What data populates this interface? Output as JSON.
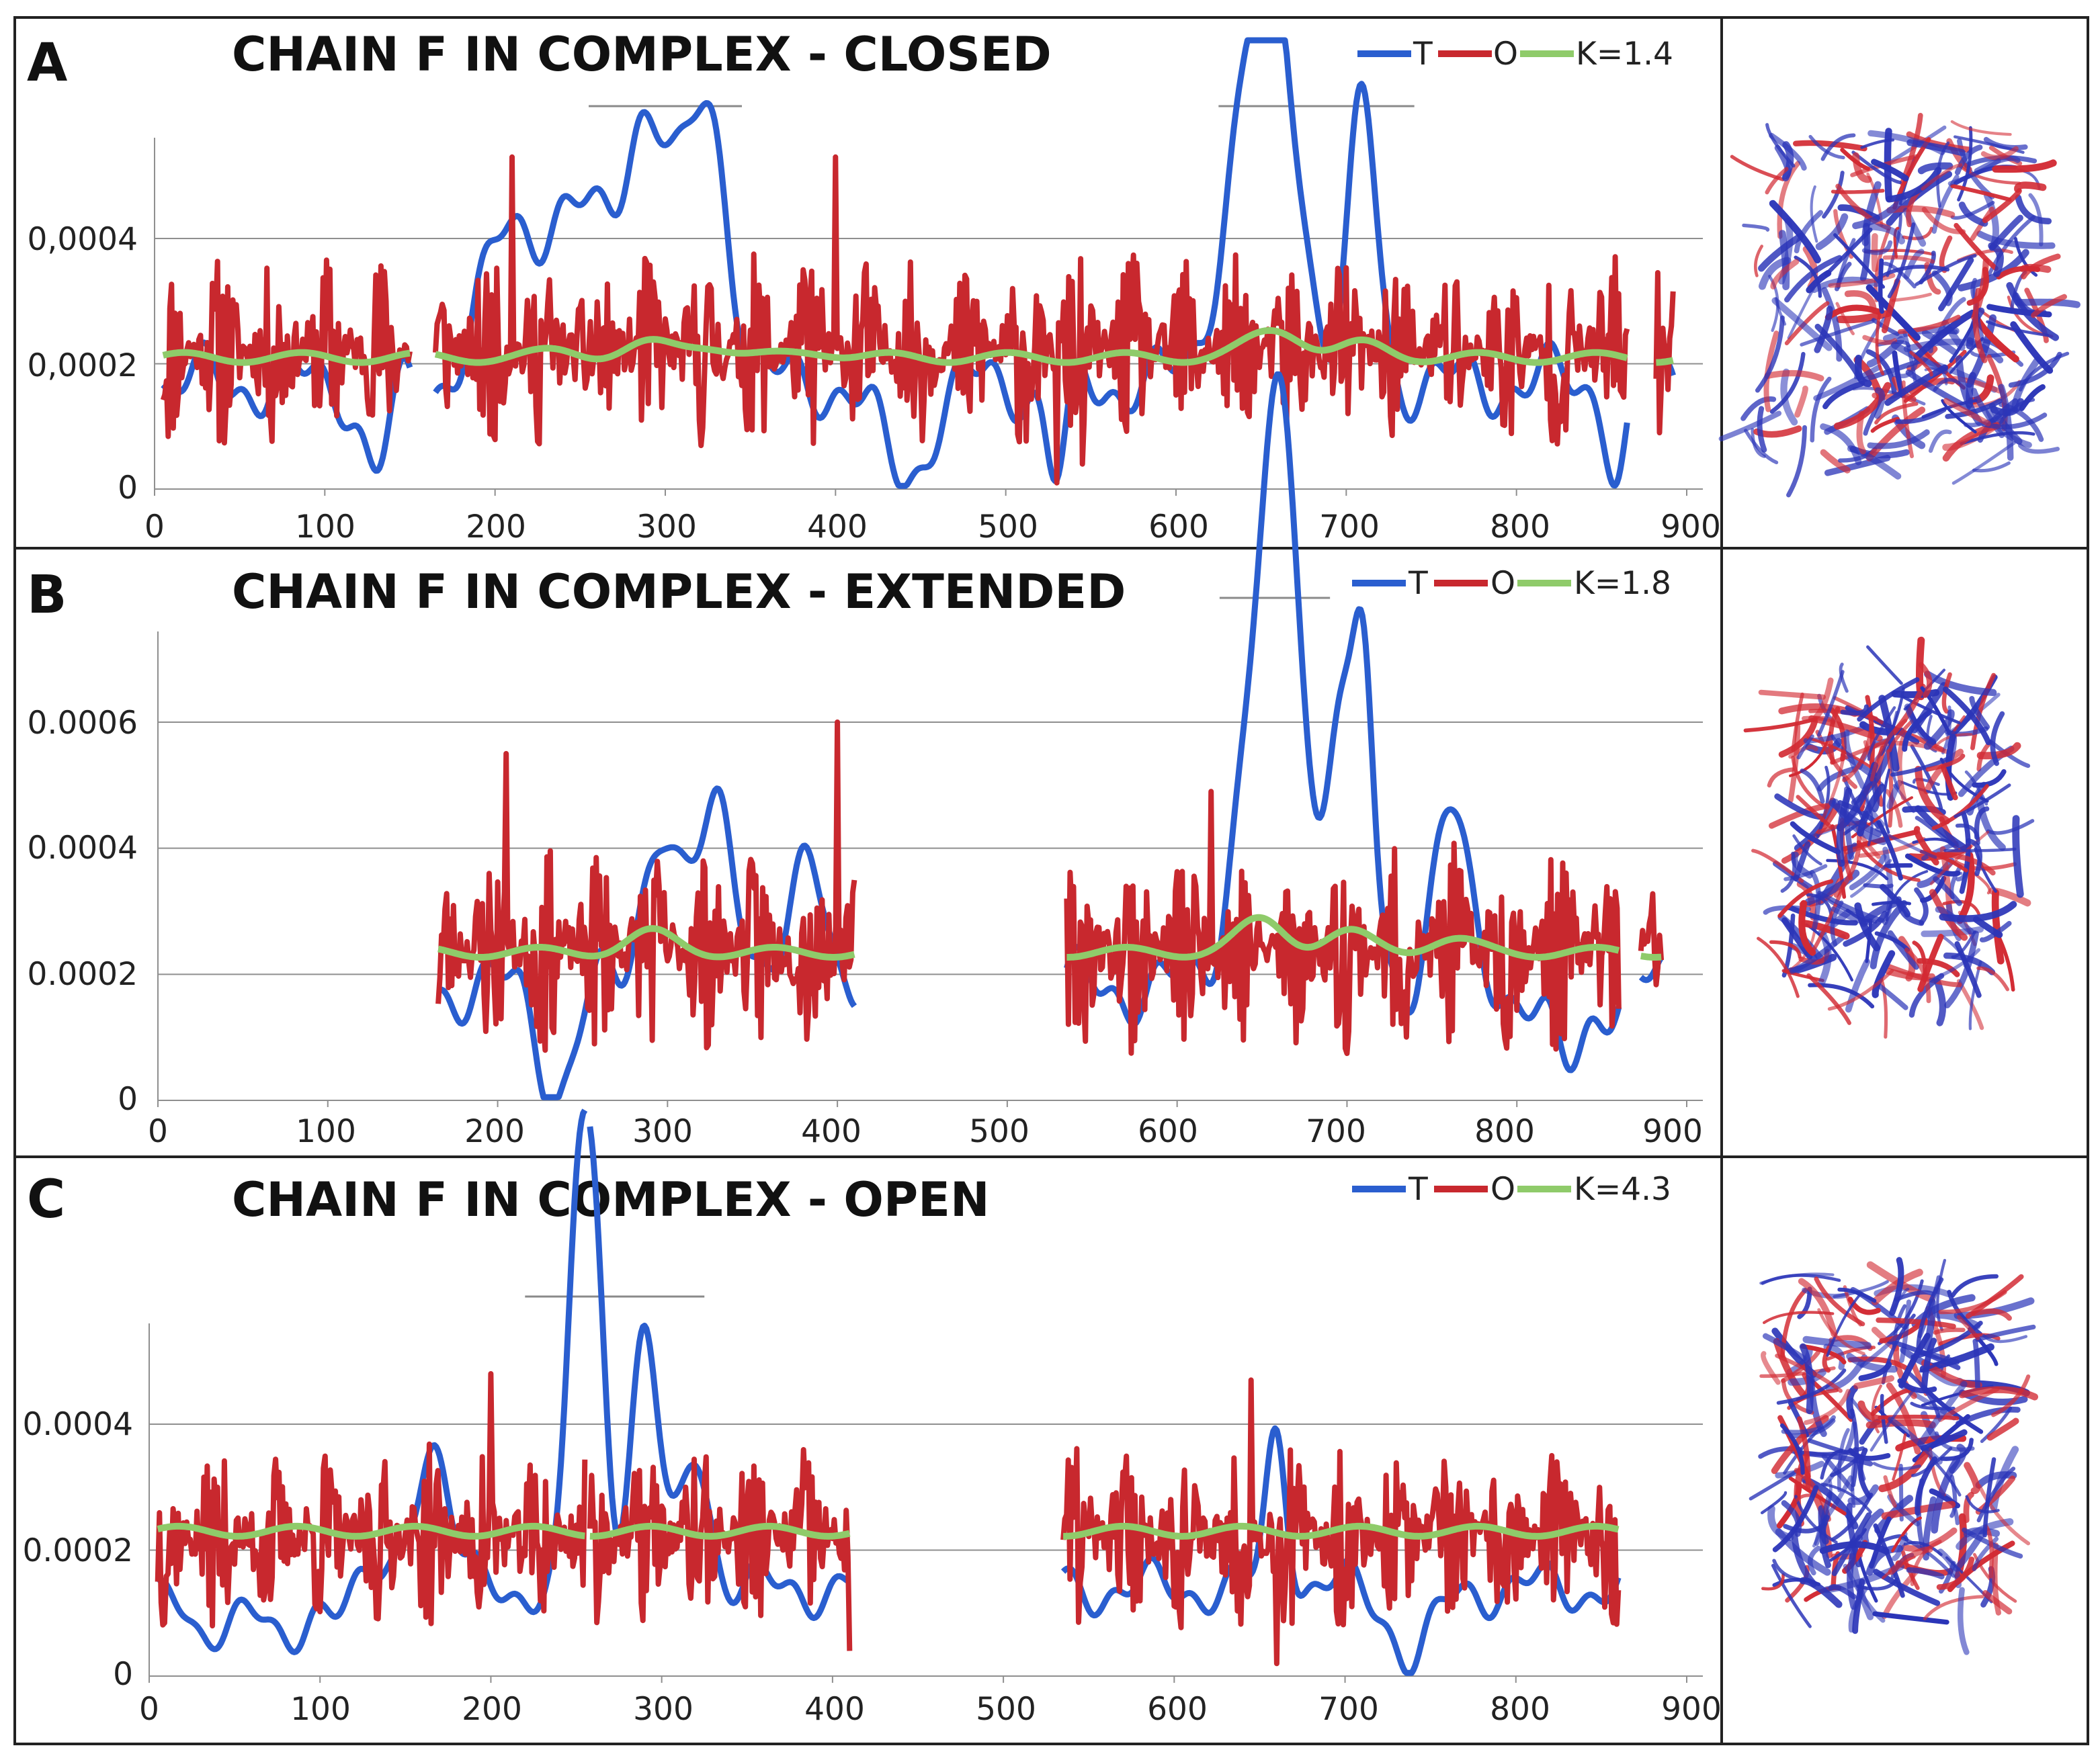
{
  "colors": {
    "T": "#2a5ecf",
    "O": "#c8282e",
    "K": "#8fcb6a",
    "grid": "#8f8f8f",
    "frame": "#222222",
    "struct_blue": "#2b35b8",
    "struct_red": "#d22a33"
  },
  "chart_data": [
    {
      "type": "line",
      "panel": "A",
      "title": "CHAIN F IN COMPLEX - CLOSED",
      "legend": {
        "T": "T",
        "O": "O",
        "K": "K=1.4"
      },
      "xlim": [
        0,
        910
      ],
      "ylim": [
        0,
        0.00055
      ],
      "xticks": [
        0,
        100,
        200,
        300,
        400,
        500,
        600,
        700,
        800,
        900
      ],
      "xtick_labels": [
        "0",
        "100",
        "200",
        "300",
        "400",
        "500",
        "600",
        "700",
        "800",
        "900"
      ],
      "yticks": [
        0,
        0.0002,
        0.0004
      ],
      "ytick_labels": [
        "0",
        "0,0002",
        "0,0004"
      ],
      "segments": [
        [
          5,
          150
        ],
        [
          165,
          865
        ],
        [
          882,
          892
        ]
      ],
      "k_level": 0.00021,
      "k_bumps": [
        [
          240,
          1e-05
        ],
        [
          290,
          2e-05
        ],
        [
          325,
          2e-05
        ],
        [
          390,
          1e-05
        ],
        [
          650,
          2e-05
        ],
        [
          665,
          3e-05
        ],
        [
          710,
          2e-05
        ]
      ],
      "t_base": 0.00017,
      "t_peaks": [
        [
          290,
          0.00058,
          14
        ],
        [
          325,
          0.0006,
          12
        ],
        [
          245,
          0.00044,
          22
        ],
        [
          205,
          0.00035,
          15
        ],
        [
          660,
          0.00066,
          14
        ],
        [
          710,
          0.00061,
          8
        ],
        [
          640,
          0.0005,
          15
        ],
        [
          130,
          3e-05,
          8
        ],
        [
          440,
          2e-05,
          14
        ],
        [
          530,
          1e-05,
          6
        ],
        [
          860,
          3e-05,
          6
        ]
      ],
      "t_noise": 4e-05,
      "o_center": 0.00022,
      "o_amp": 0.00016,
      "o_spikes": [
        [
          210,
          0.00053
        ],
        [
          400,
          0.00053
        ],
        [
          545,
          4e-05
        ],
        [
          530,
          5e-06
        ]
      ],
      "seed": 11,
      "brackets": [
        [
          255,
          345
        ],
        [
          625,
          740
        ]
      ]
    },
    {
      "type": "line",
      "panel": "B",
      "title": "CHAIN F IN COMPLEX - EXTENDED",
      "legend": {
        "T": "T",
        "O": "O",
        "K": "K=1.8"
      },
      "xlim": [
        0,
        910
      ],
      "ylim": [
        0,
        0.00075
      ],
      "xticks": [
        0,
        100,
        200,
        300,
        400,
        500,
        600,
        700,
        800,
        900
      ],
      "xtick_labels": [
        "0",
        "100",
        "200",
        "300",
        "400",
        "500",
        "600",
        "700",
        "800",
        "900"
      ],
      "yticks": [
        0,
        0.0002,
        0.0004,
        0.0006
      ],
      "ytick_labels": [
        "0",
        "0.0002",
        "0.0004",
        "0.0006"
      ],
      "segments": [
        [
          165,
          410
        ],
        [
          535,
          860
        ],
        [
          873,
          885
        ]
      ],
      "k_level": 0.000235,
      "k_bumps": [
        [
          290,
          3e-05
        ],
        [
          650,
          5e-05
        ],
        [
          700,
          3e-05
        ],
        [
          760,
          2e-05
        ]
      ],
      "t_base": 0.00018,
      "t_peaks": [
        [
          295,
          0.00044,
          10
        ],
        [
          330,
          0.00047,
          12
        ],
        [
          385,
          0.00038,
          10
        ],
        [
          650,
          0.00072,
          14
        ],
        [
          665,
          0.00075,
          10
        ],
        [
          695,
          0.00063,
          8
        ],
        [
          710,
          0.00064,
          6
        ],
        [
          760,
          0.00046,
          10
        ],
        [
          235,
          2e-05,
          10
        ],
        [
          830,
          4e-05,
          10
        ]
      ],
      "t_noise": 4e-05,
      "o_center": 0.00024,
      "o_amp": 0.00017,
      "o_spikes": [
        [
          205,
          0.00055
        ],
        [
          400,
          0.0006
        ],
        [
          620,
          0.00049
        ]
      ],
      "seed": 23,
      "brackets": [
        [
          625,
          690
        ]
      ]
    },
    {
      "type": "line",
      "panel": "C",
      "title": "CHAIN F IN COMPLEX - OPEN",
      "legend": {
        "T": "T",
        "O": "O",
        "K": "K=4.3"
      },
      "xlim": [
        0,
        910
      ],
      "ylim": [
        0,
        0.00055
      ],
      "xticks": [
        0,
        100,
        200,
        300,
        400,
        500,
        600,
        700,
        800,
        900
      ],
      "xtick_labels": [
        "0",
        "100",
        "200",
        "300",
        "400",
        "500",
        "600",
        "700",
        "800",
        "900"
      ],
      "yticks": [
        0,
        0.0002,
        0.0004
      ],
      "ytick_labels": [
        "0",
        "0.0002",
        "0.0004"
      ],
      "segments": [
        [
          5,
          255
        ],
        [
          258,
          410
        ],
        [
          535,
          860
        ]
      ],
      "k_level": 0.00023,
      "k_bumps": [],
      "t_base": 0.00014,
      "t_peaks": [
        [
          260,
          0.00069,
          7
        ],
        [
          250,
          0.00059,
          6
        ],
        [
          290,
          0.00055,
          8
        ],
        [
          165,
          0.00038,
          10
        ],
        [
          320,
          0.00036,
          8
        ],
        [
          30,
          4e-05,
          10
        ],
        [
          80,
          2e-05,
          10
        ],
        [
          740,
          3e-05,
          12
        ],
        [
          660,
          0.00039,
          6
        ]
      ],
      "t_noise": 3e-05,
      "o_center": 0.00022,
      "o_amp": 0.00015,
      "o_spikes": [
        [
          200,
          0.00048
        ],
        [
          410,
          4e-05
        ],
        [
          645,
          0.00047
        ],
        [
          660,
          2e-05
        ]
      ],
      "seed": 37,
      "brackets": [
        [
          220,
          325
        ]
      ]
    }
  ]
}
